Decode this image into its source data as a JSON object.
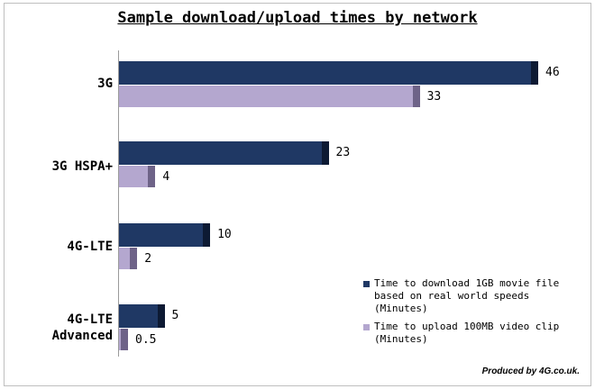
{
  "chart_data": {
    "type": "bar",
    "orientation": "horizontal",
    "title": "Sample download/upload times by network",
    "categories": [
      "3G",
      "3G HSPA+",
      "4G-LTE",
      "4G-LTE\nAdvanced"
    ],
    "series": [
      {
        "name": "Time to download 1GB movie file based on real world speeds (Minutes)",
        "values": [
          46,
          23,
          10,
          5
        ],
        "value_labels": [
          "46",
          "23",
          "10",
          "5"
        ],
        "color": "#1f3864"
      },
      {
        "name": "Time to upload 100MB video clip (Minutes)",
        "values": [
          33,
          4,
          2,
          0.5
        ],
        "value_labels": [
          "33",
          "4",
          "2",
          "0.5"
        ],
        "color": "#b4a7cf"
      }
    ],
    "xlim": [
      0,
      46
    ],
    "grid": false,
    "legend_position": "bottom-right"
  },
  "credit": "Produced by 4G.co.uk."
}
